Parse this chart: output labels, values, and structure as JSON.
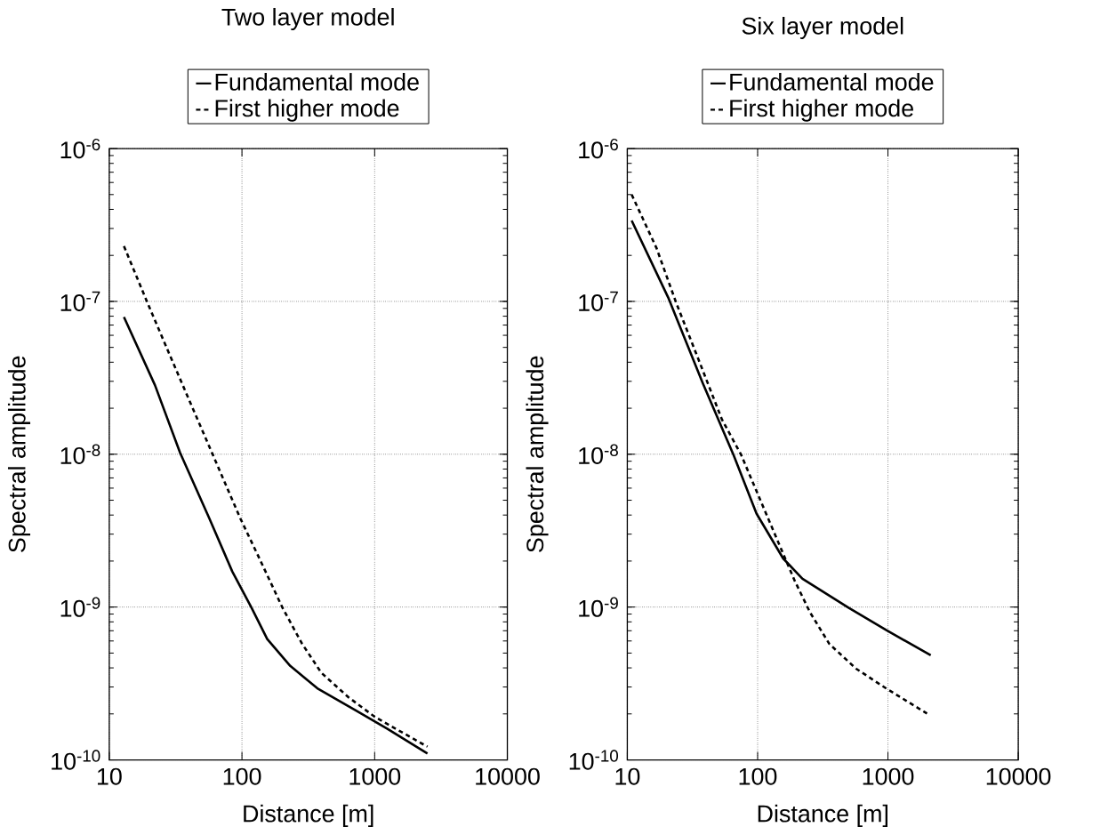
{
  "chart_data": [
    {
      "type": "line",
      "title": "Two layer model",
      "xlabel": "Distance [m]",
      "ylabel": "Spectral amplitude",
      "log": "xy",
      "grid": true,
      "legend": "top",
      "xlim": [
        10,
        10000
      ],
      "ylim": [
        1e-10,
        1e-06
      ],
      "xticks": [
        10,
        100,
        1000,
        10000
      ],
      "yticks": [
        {
          "value": 1e-10,
          "label": "10$^{-10}$"
        },
        {
          "value": 1e-09,
          "label": "10$^{-9}$"
        },
        {
          "value": 1e-08,
          "label": "10$^{-8}$"
        },
        {
          "value": 1e-07,
          "label": "10$^{-7}$"
        },
        {
          "value": 1e-06,
          "label": "10$^{-6}$"
        }
      ],
      "series": [
        {
          "name": "Fundamental mode",
          "color": "#000000",
          "line_style": "solid",
          "x": [
            12.9,
            22.1,
            34.2,
            56.5,
            84.5,
            118,
            155,
            231,
            370,
            725,
            1240,
            2500
          ],
          "values": [
            7.9e-08,
            2.83e-08,
            1.02e-08,
            3.84e-09,
            1.71e-09,
            9.9e-10,
            6.18e-10,
            4.12e-10,
            2.94e-10,
            2.1e-10,
            1.6e-10,
            1.1e-10
          ]
        },
        {
          "name": "First higher mode",
          "color": "#000000",
          "line_style": "dashed",
          "x": [
            12.9,
            19.3,
            27,
            37.7,
            60.4,
            96.7,
            135,
            202,
            283,
            396,
            634,
            1014,
            2500
          ],
          "values": [
            2.3e-07,
            9.9e-08,
            5e-08,
            2.55e-08,
            9.9e-09,
            3.84e-09,
            2.09e-09,
            9.9e-10,
            5.78e-10,
            3.72e-10,
            2.57e-10,
            1.9e-10,
            1.22e-10
          ]
        }
      ]
    },
    {
      "type": "line",
      "title": "Six layer model",
      "xlabel": "Distance [m]",
      "ylabel": "Spectral amplitude",
      "log": "xy",
      "grid": true,
      "legend": "top",
      "xlim": [
        10,
        10000
      ],
      "ylim": [
        1e-10,
        1e-06
      ],
      "xticks": [
        10,
        100,
        1000,
        10000
      ],
      "yticks": [
        {
          "value": 1e-10,
          "label": "10$^{-10}$"
        },
        {
          "value": 1e-09,
          "label": "10$^{-9}$"
        },
        {
          "value": 1e-08,
          "label": "10$^{-8}$"
        },
        {
          "value": 1e-07,
          "label": "10$^{-7}$"
        },
        {
          "value": 1e-06,
          "label": "10$^{-6}$"
        }
      ],
      "series": [
        {
          "name": "Fundamental mode",
          "color": "#000000",
          "line_style": "solid",
          "x": [
            10.8,
            20.6,
            37.9,
            65.3,
            98,
            157,
            221,
            498,
            979,
            2130
          ],
          "values": [
            3.38e-07,
            1.06e-07,
            2.92e-08,
            9.9e-09,
            4.09e-09,
            2.08e-09,
            1.53e-09,
            9.9e-10,
            7.03e-10,
            4.84e-10
          ]
        },
        {
          "name": "First higher mode",
          "color": "#000000",
          "line_style": "dashed",
          "x": [
            10.8,
            16.8,
            23.6,
            35.5,
            53.2,
            74.8,
            105,
            147,
            193,
            253,
            355,
            570,
            979,
            1995
          ],
          "values": [
            5e-07,
            2.22e-07,
            9.9e-08,
            4.09e-08,
            1.69e-08,
            9.9e-09,
            5e-09,
            2.55e-09,
            1.48e-09,
            9.2e-10,
            5.74e-10,
            3.95e-10,
            2.92e-10,
            2.01e-10
          ]
        }
      ]
    }
  ]
}
